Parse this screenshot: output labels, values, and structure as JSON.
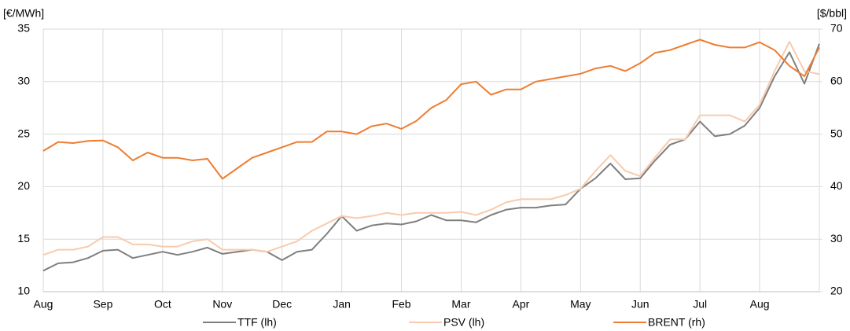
{
  "chart_data": {
    "type": "line",
    "y_label": "[€/MWh]",
    "y2_label": "[$/bbl]",
    "categories": [
      "Aug",
      null,
      null,
      null,
      "Sep",
      null,
      null,
      null,
      "Oct",
      null,
      null,
      null,
      "Nov",
      null,
      null,
      null,
      "Dec",
      null,
      null,
      null,
      "Jan",
      null,
      null,
      null,
      "Feb",
      null,
      null,
      null,
      "Mar",
      null,
      null,
      null,
      "Apr",
      null,
      null,
      null,
      "May",
      null,
      null,
      null,
      "Jun",
      null,
      null,
      null,
      "Jul",
      null,
      null,
      null,
      "Aug",
      null,
      null,
      null,
      null
    ],
    "series": [
      {
        "name": "TTF (lh)",
        "color": "#7f7f7f",
        "axis": "y",
        "values": [
          12,
          12.7,
          12.8,
          13.2,
          13.9,
          14,
          13.2,
          13.5,
          13.8,
          13.5,
          13.8,
          14.2,
          13.6,
          13.8,
          14,
          13.8,
          13,
          13.8,
          14,
          15.5,
          17.2,
          15.8,
          16.3,
          16.5,
          16.4,
          16.7,
          17.3,
          16.8,
          16.8,
          16.6,
          17.3,
          17.8,
          18,
          18,
          18.2,
          18.3,
          19.8,
          20.8,
          22.2,
          20.7,
          20.8,
          22.5,
          24,
          24.5,
          26.2,
          24.8,
          25,
          25.8,
          27.5,
          30.5,
          32.8,
          29.8,
          33.6
        ]
      },
      {
        "name": "PSV (lh)",
        "color": "#f8cbad",
        "axis": "y",
        "values": [
          13.5,
          14,
          14,
          14.3,
          15.2,
          15.2,
          14.5,
          14.5,
          14.3,
          14.3,
          14.8,
          15,
          14,
          14,
          14,
          13.8,
          14.3,
          14.8,
          15.8,
          16.5,
          17.2,
          17,
          17.2,
          17.5,
          17.3,
          17.5,
          17.5,
          17.5,
          17.6,
          17.3,
          17.8,
          18.5,
          18.8,
          18.8,
          18.8,
          19.2,
          19.8,
          21.5,
          23,
          21.5,
          21,
          22.8,
          24.5,
          24.5,
          26.8,
          26.8,
          26.8,
          26.2,
          27.8,
          31,
          33.8,
          31,
          30.7
        ]
      },
      {
        "name": "BRENT (rh)",
        "color": "#ed7d31",
        "axis": "y2",
        "values": [
          46.8,
          48.5,
          48.3,
          48.7,
          48.8,
          47.5,
          45,
          46.5,
          45.5,
          45.5,
          45,
          45.3,
          41.5,
          43.5,
          45.5,
          46.5,
          47.5,
          48.5,
          48.5,
          50.5,
          50.5,
          50,
          51.5,
          52,
          51,
          52.5,
          55,
          56.5,
          59.5,
          60,
          57.5,
          58.5,
          58.5,
          60,
          60.5,
          61,
          61.5,
          62.5,
          63,
          62,
          63.5,
          65.5,
          66,
          67,
          68,
          67,
          66.5,
          66.5,
          67.5,
          66,
          63,
          61,
          66.5
        ]
      }
    ],
    "ylim": [
      10,
      35
    ],
    "yticks": [
      10,
      15,
      20,
      25,
      30,
      35
    ],
    "y2lim": [
      20,
      70
    ],
    "y2ticks": [
      20,
      30,
      40,
      50,
      60,
      70
    ],
    "grid": true,
    "legend": "bottom"
  }
}
